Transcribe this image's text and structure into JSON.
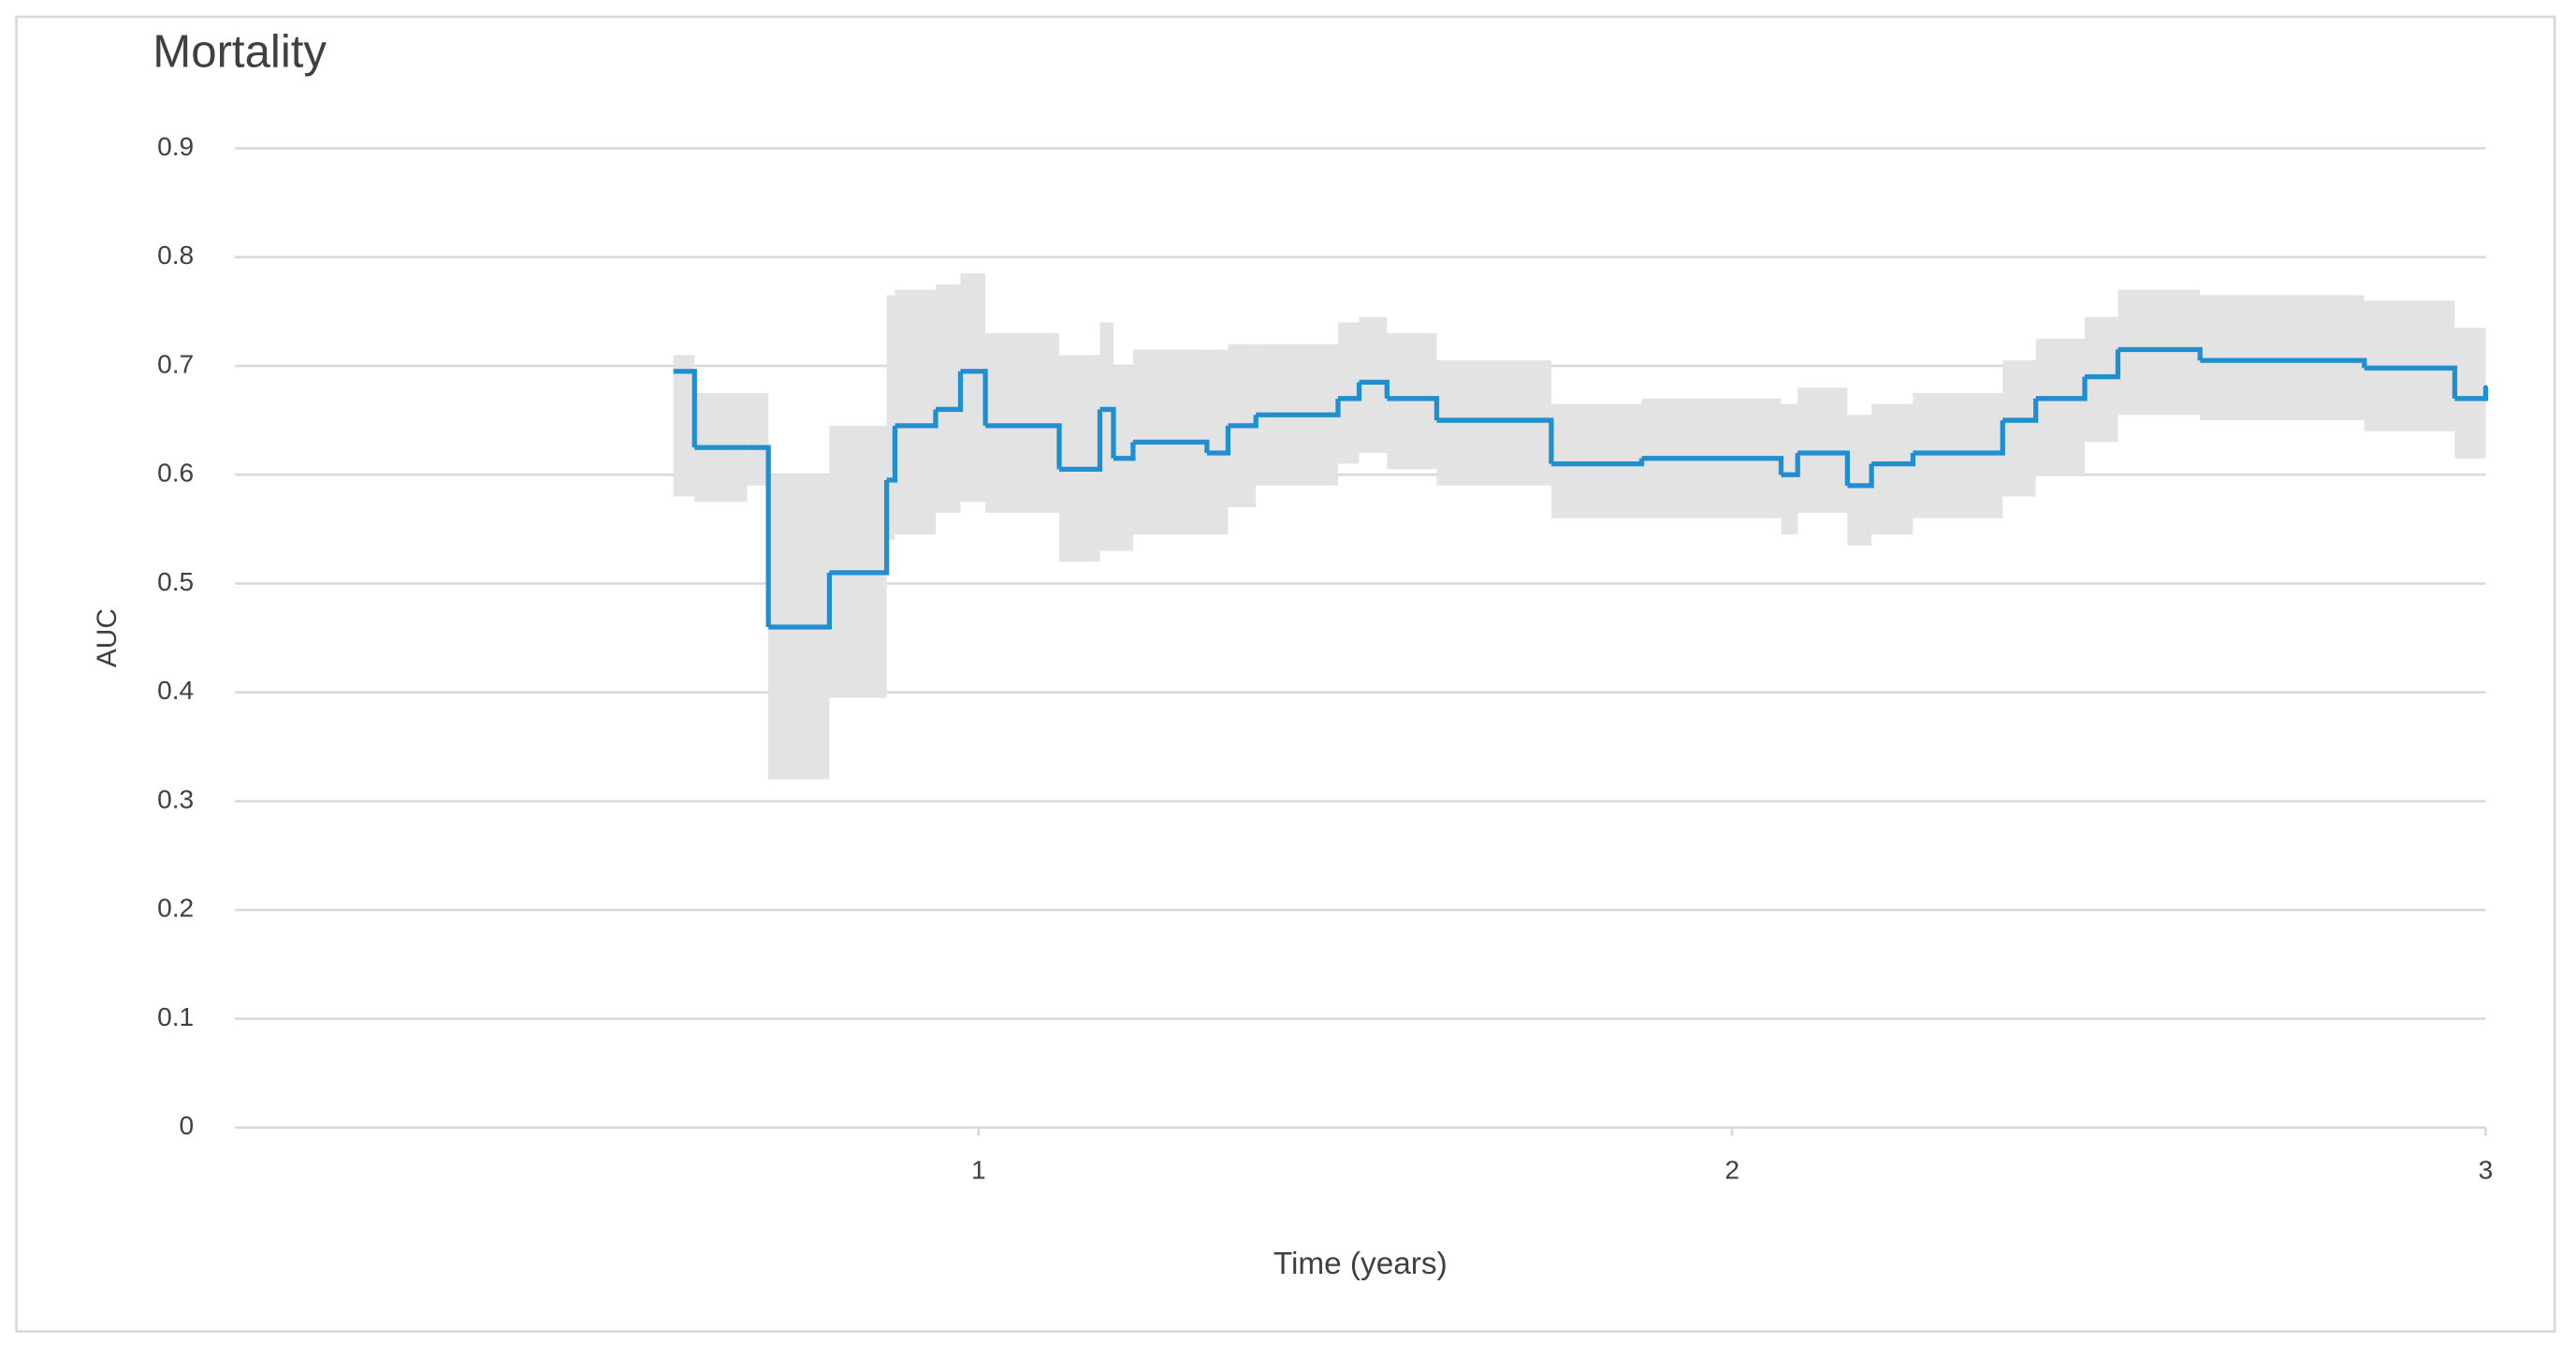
{
  "chart_data": {
    "type": "step",
    "title": "Mortality",
    "x_label": "Time (years)",
    "y_label": "AUC",
    "x": [
      0.595,
      0.623,
      0.693,
      0.721,
      0.802,
      0.878,
      0.889,
      0.943,
      0.976,
      1.009,
      1.107,
      1.161,
      1.179,
      1.205,
      1.303,
      1.331,
      1.368,
      1.477,
      1.505,
      1.542,
      1.608,
      1.76,
      1.88,
      2.065,
      2.087,
      2.153,
      2.185,
      2.24,
      2.359,
      2.403,
      2.468,
      2.512,
      2.621,
      2.839,
      2.959,
      3.0
    ],
    "values": [
      0.695,
      0.625,
      0.625,
      0.46,
      0.51,
      0.595,
      0.645,
      0.66,
      0.695,
      0.645,
      0.605,
      0.66,
      0.615,
      0.63,
      0.62,
      0.645,
      0.655,
      0.67,
      0.685,
      0.67,
      0.65,
      0.61,
      0.615,
      0.6,
      0.62,
      0.59,
      0.61,
      0.62,
      0.65,
      0.67,
      0.69,
      0.715,
      0.705,
      0.698,
      0.67,
      0.68
    ],
    "lower": [
      0.58,
      0.575,
      0.59,
      0.32,
      0.395,
      0.54,
      0.545,
      0.565,
      0.575,
      0.565,
      0.52,
      0.53,
      0.53,
      0.545,
      0.545,
      0.57,
      0.59,
      0.61,
      0.62,
      0.605,
      0.59,
      0.56,
      0.56,
      0.545,
      0.565,
      0.535,
      0.545,
      0.56,
      0.58,
      0.6,
      0.63,
      0.655,
      0.65,
      0.64,
      0.615,
      0.62
    ],
    "upper": [
      0.71,
      0.675,
      0.675,
      0.6,
      0.645,
      0.765,
      0.77,
      0.775,
      0.785,
      0.73,
      0.71,
      0.74,
      0.7,
      0.715,
      0.715,
      0.72,
      0.72,
      0.74,
      0.745,
      0.73,
      0.705,
      0.665,
      0.67,
      0.665,
      0.68,
      0.655,
      0.665,
      0.675,
      0.705,
      0.725,
      0.745,
      0.77,
      0.765,
      0.76,
      0.735,
      0.735
    ],
    "color": "#1f8fd0",
    "band_color": "#e3e3e3",
    "xlim": [
      0,
      3
    ],
    "ylim": [
      0,
      0.9
    ],
    "xticks": [
      1,
      2,
      3
    ],
    "yticks": [
      0,
      0.1,
      0.2,
      0.3,
      0.4,
      0.5,
      0.6,
      0.7,
      0.8,
      0.9
    ],
    "grid": true
  }
}
